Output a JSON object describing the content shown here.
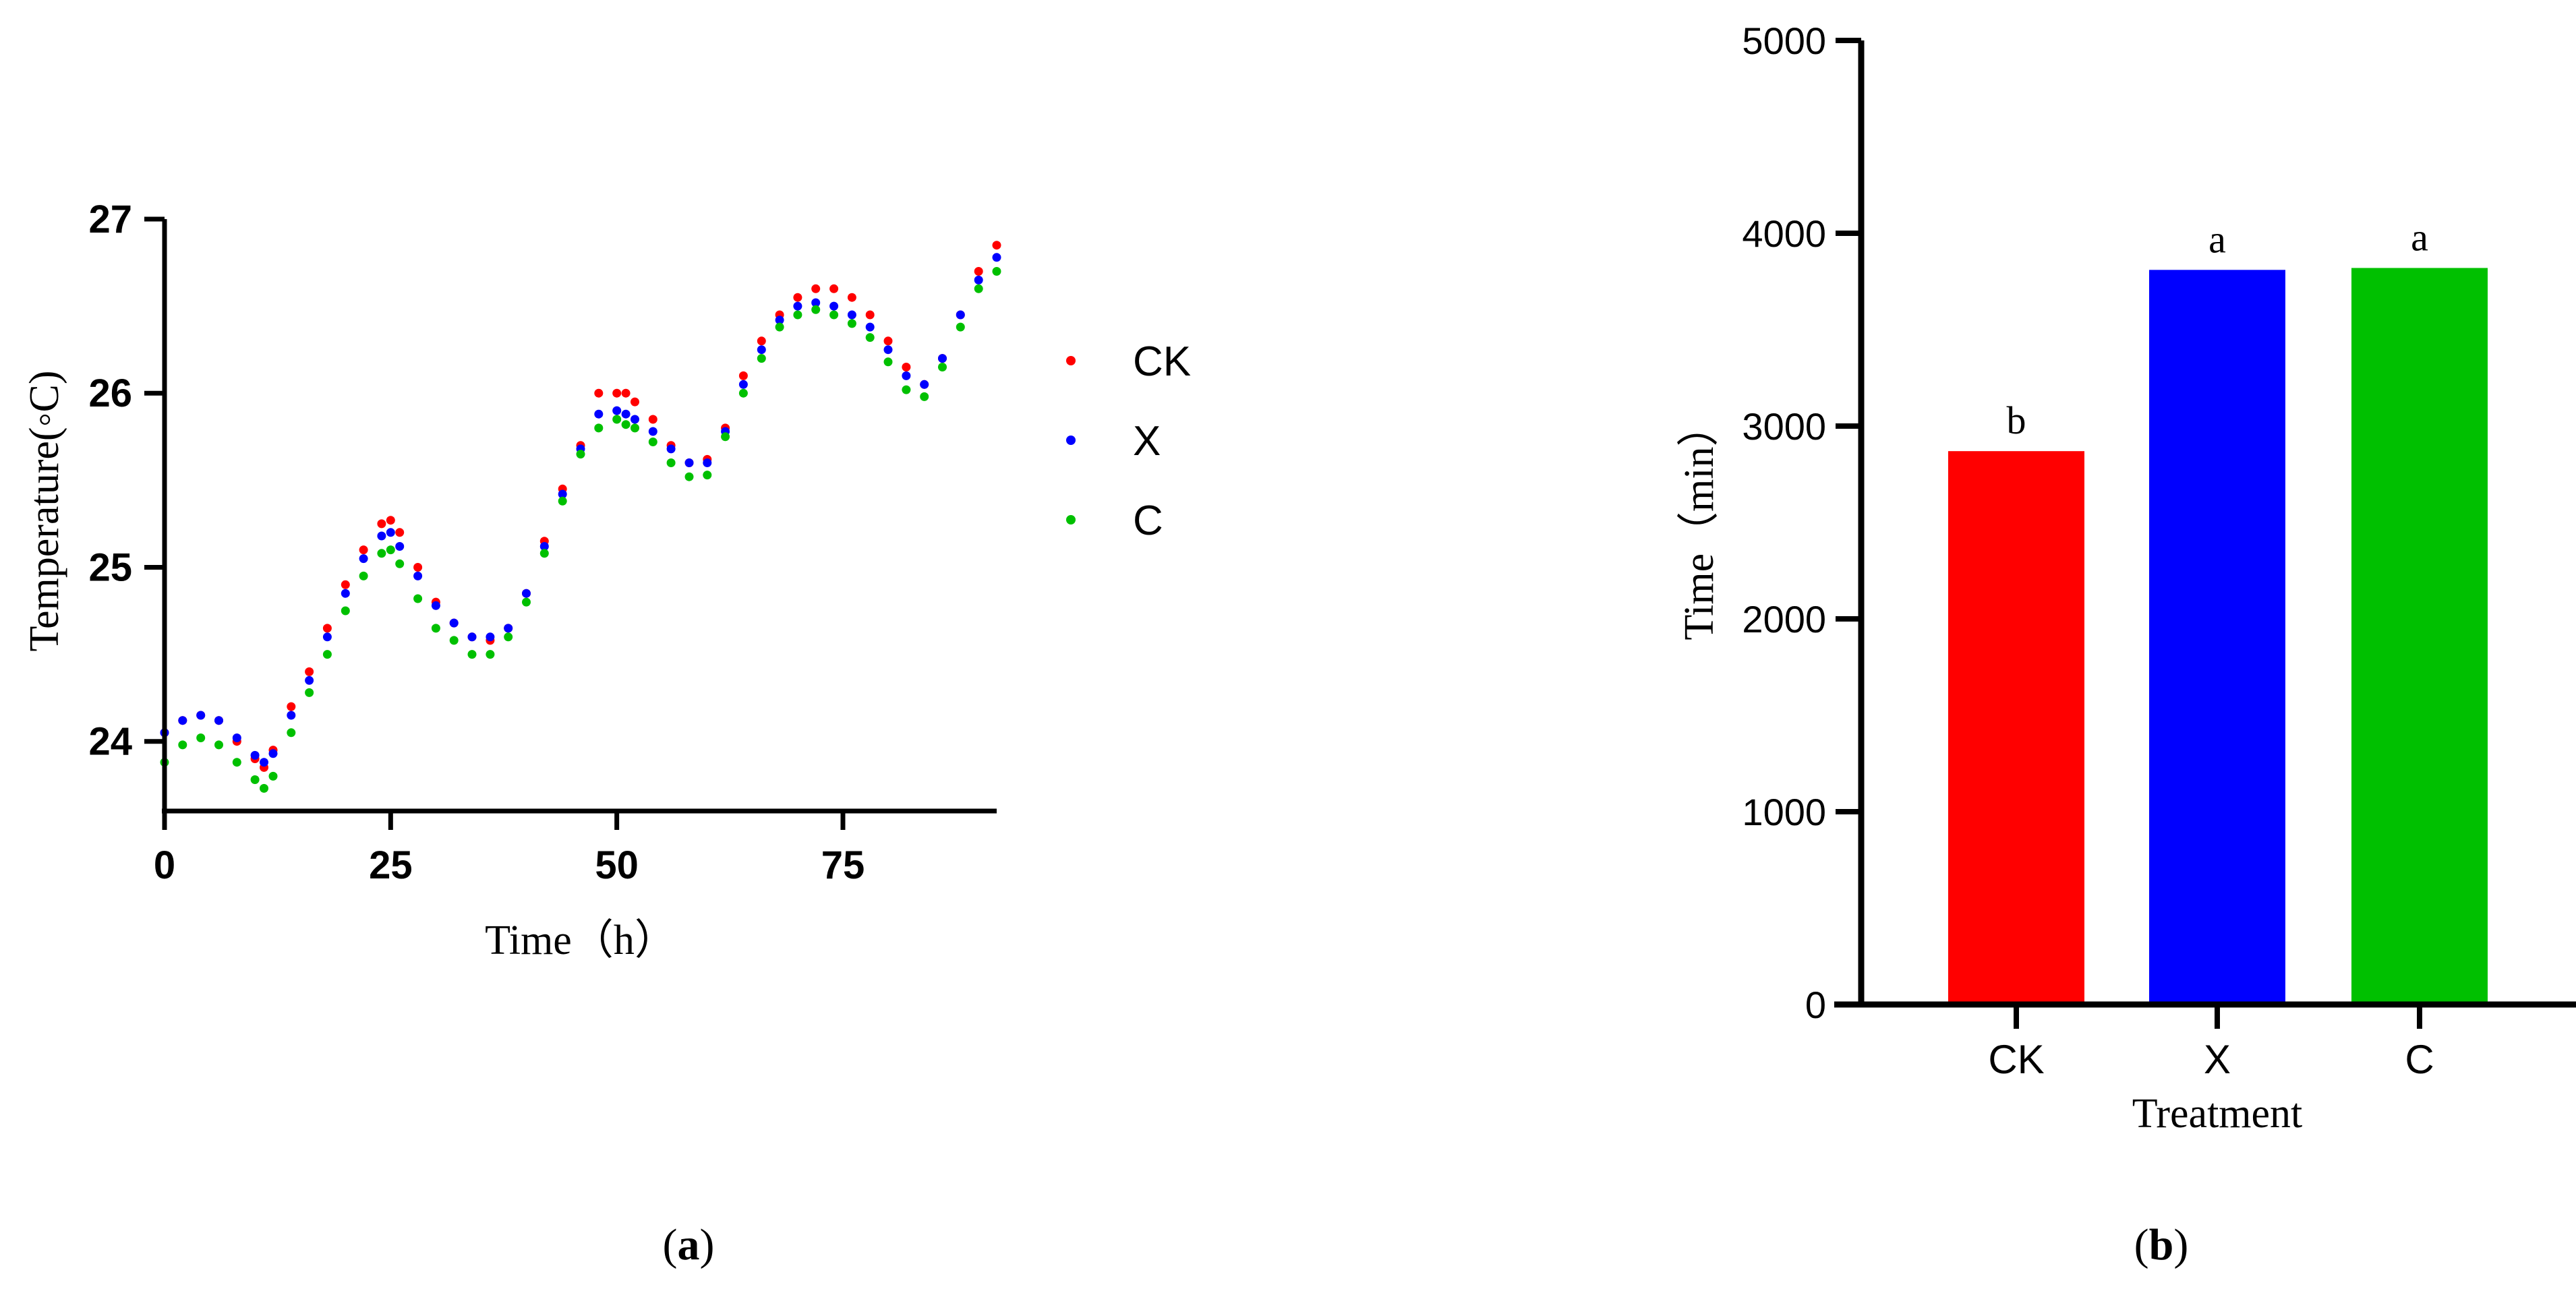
{
  "panel_labels": {
    "a": {
      "open": "(",
      "letter": "a",
      "close": ")"
    },
    "b": {
      "open": "(",
      "letter": "b",
      "close": ")"
    }
  },
  "colors": {
    "CK": "#ff0000",
    "X": "#0000ff",
    "C": "#00c000",
    "axis": "#000000"
  },
  "chart_data": [
    {
      "type": "scatter",
      "xlabel": "Time（h）",
      "ylabel": "Temperature(◦C)",
      "xlim": [
        0,
        92
      ],
      "ylim": [
        23.6,
        27
      ],
      "xticks": [
        0,
        25,
        50,
        75
      ],
      "yticks": [
        24,
        25,
        26,
        27
      ],
      "legend": "right",
      "series": [
        {
          "name": "CK",
          "x": [
            0,
            2,
            4,
            6,
            8,
            10,
            11,
            12,
            14,
            16,
            18,
            20,
            22,
            24,
            25,
            26,
            28,
            30,
            32,
            34,
            36,
            38,
            40,
            42,
            44,
            46,
            48,
            50,
            51,
            52,
            54,
            56,
            58,
            60,
            62,
            64,
            66,
            68,
            70,
            72,
            74,
            76,
            78,
            80,
            82,
            84,
            86,
            88,
            90,
            92
          ],
          "y": [
            24.05,
            24.12,
            24.15,
            24.12,
            24.0,
            23.9,
            23.85,
            23.95,
            24.2,
            24.4,
            24.65,
            24.9,
            25.1,
            25.25,
            25.27,
            25.2,
            25.0,
            24.8,
            24.68,
            24.6,
            24.58,
            24.65,
            24.85,
            25.15,
            25.45,
            25.7,
            26.0,
            26.0,
            26.0,
            25.95,
            25.85,
            25.7,
            25.6,
            25.62,
            25.8,
            26.1,
            26.3,
            26.45,
            26.55,
            26.6,
            26.6,
            26.55,
            26.45,
            26.3,
            26.15,
            26.05,
            26.2,
            26.45,
            26.7,
            26.85
          ]
        },
        {
          "name": "X",
          "x": [
            0,
            2,
            4,
            6,
            8,
            10,
            11,
            12,
            14,
            16,
            18,
            20,
            22,
            24,
            25,
            26,
            28,
            30,
            32,
            34,
            36,
            38,
            40,
            42,
            44,
            46,
            48,
            50,
            51,
            52,
            54,
            56,
            58,
            60,
            62,
            64,
            66,
            68,
            70,
            72,
            74,
            76,
            78,
            80,
            82,
            84,
            86,
            88,
            90,
            92
          ],
          "y": [
            24.05,
            24.12,
            24.15,
            24.12,
            24.02,
            23.92,
            23.88,
            23.93,
            24.15,
            24.35,
            24.6,
            24.85,
            25.05,
            25.18,
            25.2,
            25.12,
            24.95,
            24.78,
            24.68,
            24.6,
            24.6,
            24.65,
            24.85,
            25.12,
            25.42,
            25.68,
            25.88,
            25.9,
            25.88,
            25.85,
            25.78,
            25.68,
            25.6,
            25.6,
            25.78,
            26.05,
            26.25,
            26.42,
            26.5,
            26.52,
            26.5,
            26.45,
            26.38,
            26.25,
            26.1,
            26.05,
            26.2,
            26.45,
            26.65,
            26.78
          ]
        },
        {
          "name": "C",
          "x": [
            0,
            2,
            4,
            6,
            8,
            10,
            11,
            12,
            14,
            16,
            18,
            20,
            22,
            24,
            25,
            26,
            28,
            30,
            32,
            34,
            36,
            38,
            40,
            42,
            44,
            46,
            48,
            50,
            51,
            52,
            54,
            56,
            58,
            60,
            62,
            64,
            66,
            68,
            70,
            72,
            74,
            76,
            78,
            80,
            82,
            84,
            86,
            88,
            90,
            92
          ],
          "y": [
            23.88,
            23.98,
            24.02,
            23.98,
            23.88,
            23.78,
            23.73,
            23.8,
            24.05,
            24.28,
            24.5,
            24.75,
            24.95,
            25.08,
            25.1,
            25.02,
            24.82,
            24.65,
            24.58,
            24.5,
            24.5,
            24.6,
            24.8,
            25.08,
            25.38,
            25.65,
            25.8,
            25.85,
            25.82,
            25.8,
            25.72,
            25.6,
            25.52,
            25.53,
            25.75,
            26.0,
            26.2,
            26.38,
            26.45,
            26.48,
            26.45,
            26.4,
            26.32,
            26.18,
            26.02,
            25.98,
            26.15,
            26.38,
            26.6,
            26.7
          ]
        }
      ]
    },
    {
      "type": "bar",
      "categories": [
        "CK",
        "X",
        "C"
      ],
      "values": [
        2870,
        3810,
        3820
      ],
      "labels": [
        "b",
        "a",
        "a"
      ],
      "xlabel": "Treatment",
      "ylabel": "Time（min）",
      "ylim": [
        0,
        5000
      ],
      "yticks": [
        0,
        1000,
        2000,
        3000,
        4000,
        5000
      ]
    }
  ]
}
